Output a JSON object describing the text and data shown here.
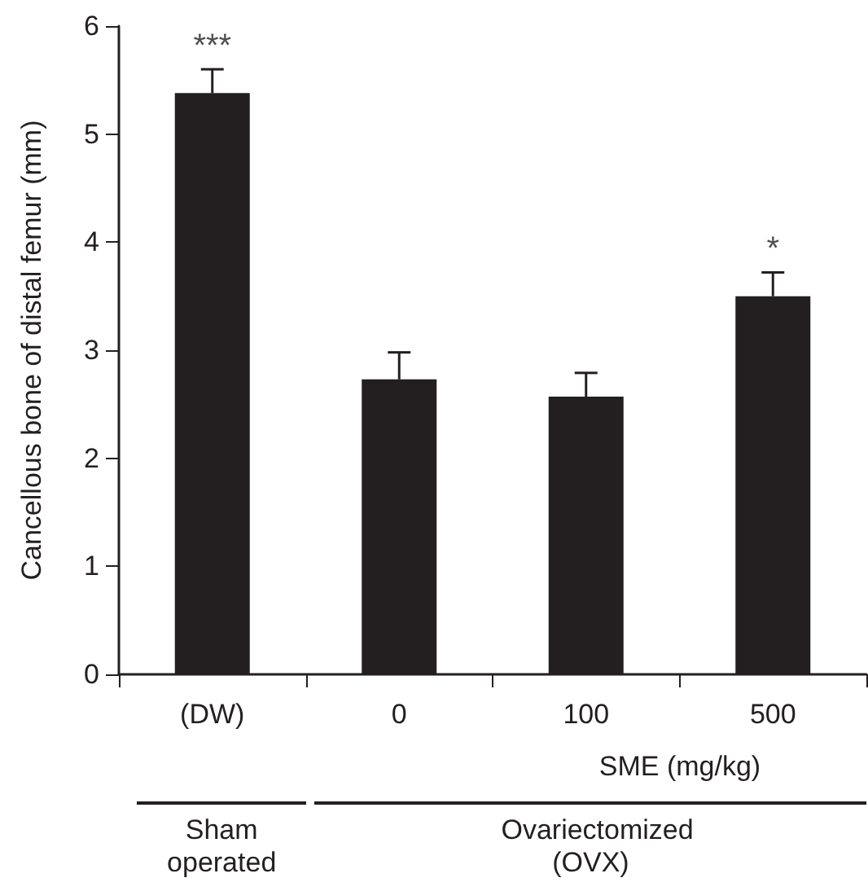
{
  "chart_data": {
    "type": "bar",
    "categories": [
      "(DW)",
      "0",
      "100",
      "500"
    ],
    "values": [
      5.38,
      2.73,
      2.57,
      3.5
    ],
    "color": "#231f20",
    "errors": [
      [
        5.38,
        5.6
      ],
      [
        2.73,
        2.98
      ],
      [
        2.57,
        2.79
      ],
      [
        3.5,
        3.72
      ]
    ],
    "ylabel": "Cancellous bone of distal femur (mm)",
    "xlabel": "SME (mg/kg)",
    "ylim": [
      0,
      6
    ],
    "yticks": [
      0,
      1,
      2,
      3,
      4,
      5,
      6
    ],
    "grid": false,
    "annotations": [
      {
        "text": "***",
        "x": "(DW)",
        "y": 5.6
      },
      {
        "text": "*",
        "x": "500",
        "y": 3.72
      },
      "Sham operated",
      "Ovariectomized (OVX)"
    ]
  }
}
